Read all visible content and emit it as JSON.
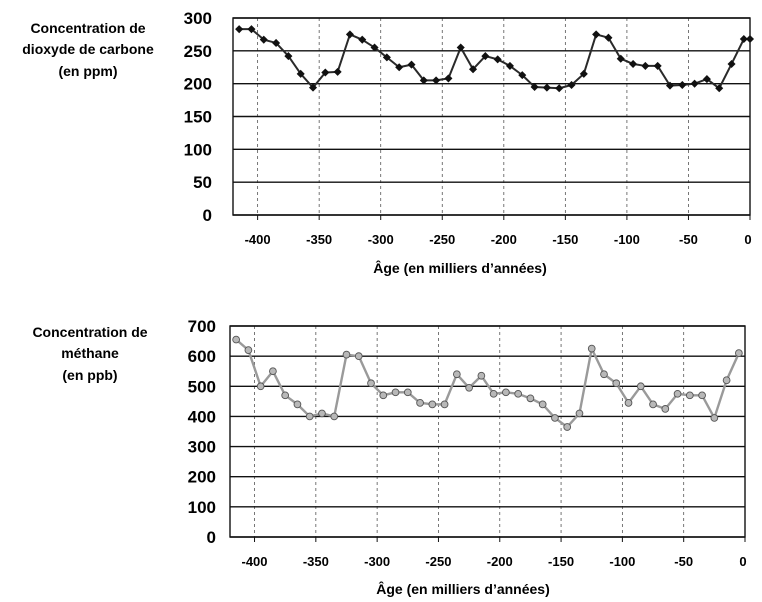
{
  "chart_data": [
    {
      "type": "line",
      "ylabel_lines": [
        "Concentration de",
        "dioxyde de carbone",
        "(en ppm)"
      ],
      "xlabel": "Âge (en milliers  d’années)",
      "xlim": [
        -420,
        0
      ],
      "ylim": [
        0,
        300
      ],
      "xticks": [
        -400,
        -350,
        -300,
        -250,
        -200,
        -150,
        -100,
        -50,
        0
      ],
      "yticks": [
        0,
        50,
        100,
        150,
        200,
        250,
        300
      ],
      "grid": {
        "horizontal": "solid",
        "vertical": "dashed"
      },
      "line_color": "#2a2a2a",
      "marker": "diamond",
      "x": [
        -415,
        -405,
        -395,
        -385,
        -375,
        -365,
        -355,
        -345,
        -335,
        -325,
        -315,
        -305,
        -295,
        -285,
        -275,
        -265,
        -255,
        -245,
        -235,
        -225,
        -215,
        -205,
        -195,
        -185,
        -175,
        -165,
        -155,
        -145,
        -135,
        -125,
        -115,
        -105,
        -95,
        -85,
        -75,
        -65,
        -55,
        -45,
        -35,
        -25,
        -15,
        -5,
        0
      ],
      "y": [
        283,
        283,
        267,
        262,
        242,
        215,
        194,
        217,
        218,
        275,
        267,
        255,
        240,
        225,
        229,
        205,
        205,
        208,
        255,
        222,
        242,
        237,
        227,
        213,
        195,
        194,
        193,
        198,
        215,
        275,
        270,
        238,
        230,
        227,
        227,
        197,
        198,
        200,
        207,
        193,
        230,
        268,
        268
      ]
    },
    {
      "type": "line",
      "ylabel_lines": [
        "Concentration de",
        "méthane",
        "(en ppb)"
      ],
      "xlabel": "Âge (en milliers  d’années)",
      "xlim": [
        -420,
        0
      ],
      "ylim": [
        0,
        700
      ],
      "xticks": [
        -400,
        -350,
        -300,
        -250,
        -200,
        -150,
        -100,
        -50,
        0
      ],
      "yticks": [
        0,
        100,
        200,
        300,
        400,
        500,
        600,
        700
      ],
      "grid": {
        "horizontal": "solid",
        "vertical": "dashed"
      },
      "line_color": "#9a9a9a",
      "marker": "circle",
      "x": [
        -415,
        -405,
        -395,
        -385,
        -375,
        -365,
        -355,
        -345,
        -335,
        -325,
        -315,
        -305,
        -295,
        -285,
        -275,
        -265,
        -255,
        -245,
        -235,
        -225,
        -215,
        -205,
        -195,
        -185,
        -175,
        -165,
        -155,
        -145,
        -135,
        -125,
        -115,
        -105,
        -95,
        -85,
        -75,
        -65,
        -55,
        -45,
        -35,
        -25,
        -15,
        -5
      ],
      "y": [
        655,
        620,
        500,
        550,
        470,
        440,
        400,
        410,
        400,
        605,
        600,
        510,
        470,
        480,
        480,
        445,
        440,
        440,
        540,
        495,
        535,
        475,
        480,
        475,
        460,
        440,
        395,
        365,
        410,
        625,
        540,
        510,
        445,
        500,
        440,
        425,
        475,
        470,
        470,
        395,
        520,
        610
      ]
    }
  ]
}
